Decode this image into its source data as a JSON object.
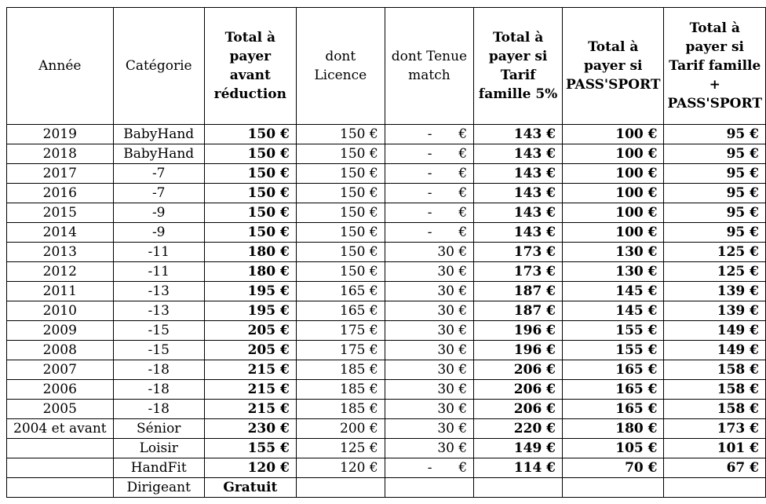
{
  "headers": [
    {
      "label": "Année",
      "bold": false
    },
    {
      "label": "Catégorie",
      "bold": false
    },
    {
      "label": "Total à payer avant réduction",
      "bold": true
    },
    {
      "label": "dont Licence",
      "bold": false
    },
    {
      "label": "dont Tenue match",
      "bold": false
    },
    {
      "label": "Total à payer si Tarif famille 5%",
      "bold": true
    },
    {
      "label": "Total à payer si PASS'SPORT",
      "bold": true
    },
    {
      "label": "Total à payer si Tarif famille + PASS'SPORT",
      "bold": true
    }
  ],
  "rows": [
    {
      "annee": "2019",
      "categorie": "BabyHand",
      "total": "150 €",
      "licence": "150 €",
      "tenue": "-",
      "famille": "143 €",
      "pass": "100 €",
      "famille_pass": "95 €"
    },
    {
      "annee": "2018",
      "categorie": "BabyHand",
      "total": "150 €",
      "licence": "150 €",
      "tenue": "-",
      "famille": "143 €",
      "pass": "100 €",
      "famille_pass": "95 €"
    },
    {
      "annee": "2017",
      "categorie": "-7",
      "total": "150 €",
      "licence": "150 €",
      "tenue": "-",
      "famille": "143 €",
      "pass": "100 €",
      "famille_pass": "95 €"
    },
    {
      "annee": "2016",
      "categorie": "-7",
      "total": "150 €",
      "licence": "150 €",
      "tenue": "-",
      "famille": "143 €",
      "pass": "100 €",
      "famille_pass": "95 €"
    },
    {
      "annee": "2015",
      "categorie": "-9",
      "total": "150 €",
      "licence": "150 €",
      "tenue": "-",
      "famille": "143 €",
      "pass": "100 €",
      "famille_pass": "95 €"
    },
    {
      "annee": "2014",
      "categorie": "-9",
      "total": "150 €",
      "licence": "150 €",
      "tenue": "-",
      "famille": "143 €",
      "pass": "100 €",
      "famille_pass": "95 €"
    },
    {
      "annee": "2013",
      "categorie": "-11",
      "total": "180 €",
      "licence": "150 €",
      "tenue": "30 €",
      "famille": "173 €",
      "pass": "130 €",
      "famille_pass": "125 €"
    },
    {
      "annee": "2012",
      "categorie": "-11",
      "total": "180 €",
      "licence": "150 €",
      "tenue": "30 €",
      "famille": "173 €",
      "pass": "130 €",
      "famille_pass": "125 €"
    },
    {
      "annee": "2011",
      "categorie": "-13",
      "total": "195 €",
      "licence": "165 €",
      "tenue": "30 €",
      "famille": "187 €",
      "pass": "145 €",
      "famille_pass": "139 €"
    },
    {
      "annee": "2010",
      "categorie": "-13",
      "total": "195 €",
      "licence": "165 €",
      "tenue": "30 €",
      "famille": "187 €",
      "pass": "145 €",
      "famille_pass": "139 €"
    },
    {
      "annee": "2009",
      "categorie": "-15",
      "total": "205 €",
      "licence": "175 €",
      "tenue": "30 €",
      "famille": "196 €",
      "pass": "155 €",
      "famille_pass": "149 €"
    },
    {
      "annee": "2008",
      "categorie": "-15",
      "total": "205 €",
      "licence": "175 €",
      "tenue": "30 €",
      "famille": "196 €",
      "pass": "155 €",
      "famille_pass": "149 €"
    },
    {
      "annee": "2007",
      "categorie": "-18",
      "total": "215 €",
      "licence": "185 €",
      "tenue": "30 €",
      "famille": "206 €",
      "pass": "165 €",
      "famille_pass": "158 €"
    },
    {
      "annee": "2006",
      "categorie": "-18",
      "total": "215 €",
      "licence": "185 €",
      "tenue": "30 €",
      "famille": "206 €",
      "pass": "165 €",
      "famille_pass": "158 €"
    },
    {
      "annee": "2005",
      "categorie": "-18",
      "total": "215 €",
      "licence": "185 €",
      "tenue": "30 €",
      "famille": "206 €",
      "pass": "165 €",
      "famille_pass": "158 €"
    },
    {
      "annee": "2004 et avant",
      "categorie": "Sénior",
      "total": "230 €",
      "licence": "200 €",
      "tenue": "30 €",
      "famille": "220 €",
      "pass": "180 €",
      "famille_pass": "173 €"
    },
    {
      "annee": "",
      "categorie": "Loisir",
      "total": "155 €",
      "licence": "125 €",
      "tenue": "30 €",
      "famille": "149 €",
      "pass": "105 €",
      "famille_pass": "101 €"
    },
    {
      "annee": "",
      "categorie": "HandFit",
      "total": "120 €",
      "licence": "120 €",
      "tenue": "-",
      "famille": "114 €",
      "pass": "70 €",
      "famille_pass": "67 €"
    },
    {
      "annee": "",
      "categorie": "Dirigeant",
      "total": "Gratuit",
      "licence": "",
      "tenue": "",
      "famille": "",
      "pass": "",
      "famille_pass": ""
    }
  ]
}
